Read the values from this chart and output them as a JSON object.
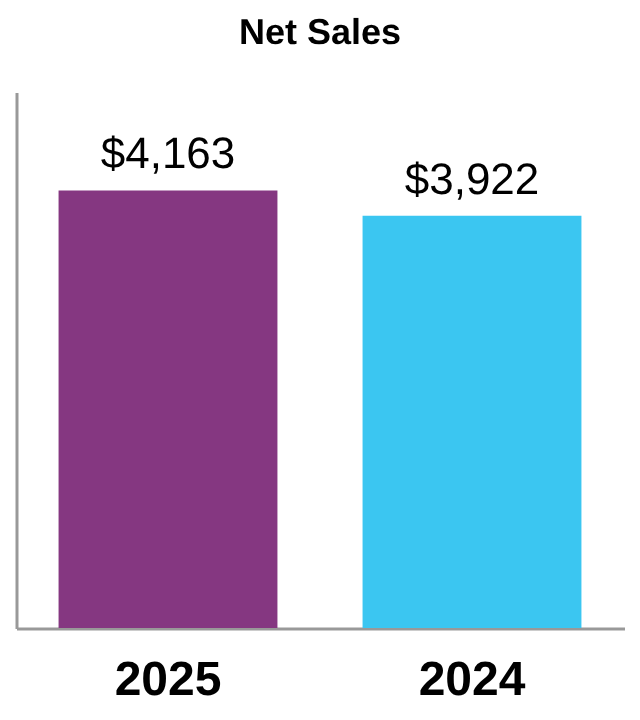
{
  "chart_data": {
    "type": "bar",
    "title": "Net Sales",
    "categories": [
      "2025",
      "2024"
    ],
    "values": [
      4163,
      3922
    ],
    "colors": [
      "#853781",
      "#3bc6f1"
    ],
    "value_labels": [
      "$4,163",
      "$3,922"
    ],
    "ylim": [
      0,
      5100
    ],
    "tick_labels": "x",
    "grid": false
  }
}
